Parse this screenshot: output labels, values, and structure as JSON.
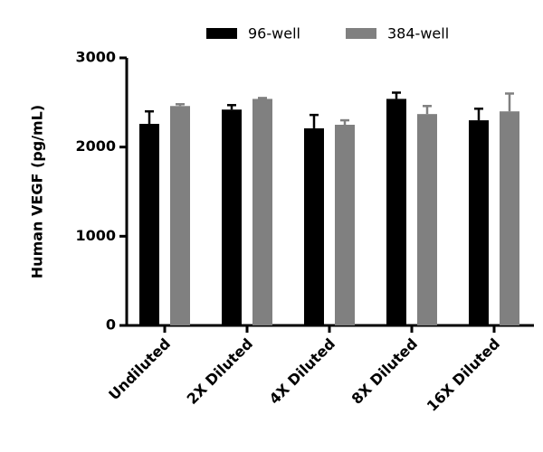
{
  "chart_data": {
    "type": "bar",
    "y_label": "Human VEGF (pg/mL)",
    "categories": [
      "Undiluted",
      "2X Diluted",
      "4X Diluted",
      "8X Diluted",
      "16X Diluted"
    ],
    "series": [
      {
        "name": "96-well",
        "color": "#000000",
        "values": [
          2260,
          2420,
          2210,
          2540,
          2300
        ],
        "errors": [
          140,
          50,
          150,
          70,
          130
        ]
      },
      {
        "name": "384-well",
        "color": "#808080",
        "values": [
          2460,
          2540,
          2250,
          2370,
          2400
        ],
        "errors": [
          20,
          10,
          50,
          90,
          200
        ]
      }
    ],
    "ylim": [
      0,
      3000
    ],
    "yticks": [
      0,
      1000,
      2000,
      3000
    ]
  }
}
